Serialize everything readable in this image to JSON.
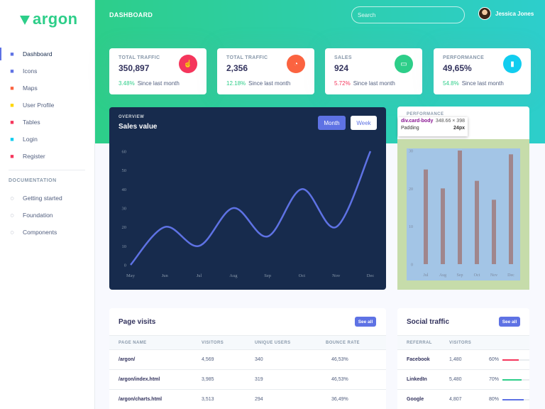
{
  "brand": {
    "name": "argon",
    "color": "#2dce89"
  },
  "sidebar": {
    "items": [
      {
        "label": "Dashboard",
        "icon": "tv-icon",
        "color": "#5e72e4"
      },
      {
        "label": "Icons",
        "icon": "planet-icon",
        "color": "#5e72e4"
      },
      {
        "label": "Maps",
        "icon": "pin-icon",
        "color": "#fb6340"
      },
      {
        "label": "User Profile",
        "icon": "user-icon",
        "color": "#ffd600"
      },
      {
        "label": "Tables",
        "icon": "list-icon",
        "color": "#f5365c"
      },
      {
        "label": "Login",
        "icon": "key-icon",
        "color": "#11cdef"
      },
      {
        "label": "Register",
        "icon": "circle-user-icon",
        "color": "#f5365c"
      }
    ],
    "doc_heading": "DOCUMENTATION",
    "doc_items": [
      {
        "label": "Getting started",
        "icon": "spaceship-icon"
      },
      {
        "label": "Foundation",
        "icon": "palette-icon"
      },
      {
        "label": "Components",
        "icon": "ui-icon"
      }
    ]
  },
  "header": {
    "title": "DASHBOARD",
    "search_placeholder": "Search",
    "user_name": "Jessica Jones"
  },
  "stats": [
    {
      "label": "TOTAL TRAFFIC",
      "value": "350,897",
      "pct": "3.48%",
      "pct_color": "#2dce89",
      "since": "Since last month",
      "icon": "pointer-icon",
      "icon_bg": "#f5365c",
      "glyph": "☝"
    },
    {
      "label": "TOTAL TRAFFIC",
      "value": "2,356",
      "pct": "12.18%",
      "pct_color": "#2dce89",
      "since": "Since last month",
      "icon": "chart-pie-icon",
      "icon_bg": "#fb6340",
      "glyph": "◔"
    },
    {
      "label": "SALES",
      "value": "924",
      "pct": "5.72%",
      "pct_color": "#f5365c",
      "since": "Since last month",
      "icon": "money-icon",
      "icon_bg": "#2dce89",
      "glyph": "▭"
    },
    {
      "label": "PERFORMANCE",
      "value": "49,65%",
      "pct": "54.8%",
      "pct_color": "#2dce89",
      "since": "Since last month",
      "icon": "chart-bar-icon",
      "icon_bg": "#11cdef",
      "glyph": "▮"
    }
  ],
  "sales_card": {
    "overview": "OVERVIEW",
    "title": "Sales value",
    "btn_month": "Month",
    "btn_week": "Week"
  },
  "perf_card": {
    "title": "PERFORMANCE"
  },
  "inspector_tooltip": {
    "selector": "div.card-body",
    "dims": "348.66 × 398",
    "prop": "Padding",
    "prop_value": "24px"
  },
  "chart_data": [
    {
      "type": "line",
      "categories": [
        "May",
        "Jun",
        "Jul",
        "Aug",
        "Sep",
        "Oct",
        "Nov",
        "Dec"
      ],
      "values": [
        0,
        20,
        10,
        30,
        15,
        40,
        20,
        60
      ],
      "yticks": [
        0,
        10,
        20,
        30,
        40,
        50,
        60
      ],
      "ylim": [
        0,
        60
      ],
      "color": "#5e72e4"
    },
    {
      "type": "bar",
      "categories": [
        "Jul",
        "Aug",
        "Sep",
        "Oct",
        "Nov",
        "Dec"
      ],
      "values": [
        25,
        20,
        30,
        22,
        17,
        29
      ],
      "yticks": [
        0,
        10,
        20,
        30
      ],
      "ylim": [
        0,
        30
      ],
      "color": "#a0868c"
    }
  ],
  "page_visits": {
    "title": "Page visits",
    "see_all": "See all",
    "columns": [
      "PAGE NAME",
      "VISITORS",
      "UNIQUE USERS",
      "BOUNCE RATE"
    ],
    "rows": [
      [
        "/argon/",
        "4,569",
        "340",
        "46,53%"
      ],
      [
        "/argon/index.html",
        "3,985",
        "319",
        "46,53%"
      ],
      [
        "/argon/charts.html",
        "3,513",
        "294",
        "36,49%"
      ]
    ]
  },
  "social_traffic": {
    "title": "Social traffic",
    "see_all": "See all",
    "columns": [
      "REFERRAL",
      "VISITORS"
    ],
    "rows": [
      {
        "name": "Facebook",
        "visitors": "1,480",
        "pct": "60%",
        "fill": 0.6,
        "color": "#f5365c"
      },
      {
        "name": "LinkedIn",
        "visitors": "5,480",
        "pct": "70%",
        "fill": 0.7,
        "color": "#2dce89"
      },
      {
        "name": "Google",
        "visitors": "4,807",
        "pct": "80%",
        "fill": 0.8,
        "color": "#5e72e4"
      }
    ]
  }
}
